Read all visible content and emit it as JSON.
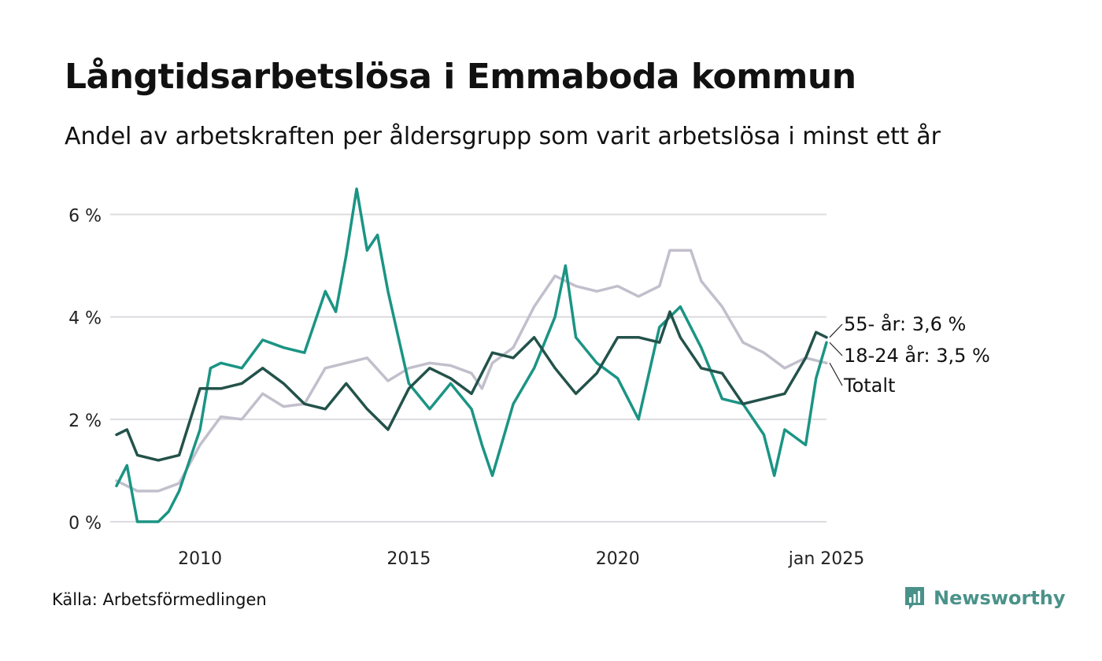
{
  "title": "Långtidsarbetslösa i Emmaboda kommun",
  "subtitle": "Andel av arbetskraften per åldersgrupp som varit arbetslösa i minst ett år",
  "source": "Källa: Arbetsförmedlingen",
  "brand": {
    "name": "Newsworthy",
    "icon": "bar-chart-speech-bubble-icon",
    "color": "#4a9289"
  },
  "chart_data": {
    "type": "line",
    "x_range": [
      "2008-01",
      "2025-01"
    ],
    "x_ticks": [
      {
        "x": "2010-01",
        "label": "2010"
      },
      {
        "x": "2015-01",
        "label": "2015"
      },
      {
        "x": "2020-01",
        "label": "2020"
      },
      {
        "x": "2025-01",
        "label": "jan 2025"
      }
    ],
    "ylim": [
      0,
      6.5
    ],
    "y_ticks": [
      {
        "value": 0,
        "label": "0 %"
      },
      {
        "value": 2,
        "label": "2 %"
      },
      {
        "value": 4,
        "label": "4 %"
      },
      {
        "value": 6,
        "label": "6 %"
      }
    ],
    "grid": true,
    "legend": "end-of-line labels",
    "series": [
      {
        "name": "Totalt",
        "label": "Totalt",
        "color": "#c2bfcc",
        "points": [
          [
            "2008-01",
            0.8
          ],
          [
            "2008-07",
            0.6
          ],
          [
            "2009-01",
            0.6
          ],
          [
            "2009-07",
            0.75
          ],
          [
            "2010-01",
            1.5
          ],
          [
            "2010-07",
            2.05
          ],
          [
            "2011-01",
            2.0
          ],
          [
            "2011-07",
            2.5
          ],
          [
            "2012-01",
            2.25
          ],
          [
            "2012-07",
            2.3
          ],
          [
            "2013-01",
            3.0
          ],
          [
            "2013-07",
            3.1
          ],
          [
            "2014-01",
            3.2
          ],
          [
            "2014-07",
            2.75
          ],
          [
            "2015-01",
            3.0
          ],
          [
            "2015-07",
            3.1
          ],
          [
            "2016-01",
            3.05
          ],
          [
            "2016-07",
            2.9
          ],
          [
            "2016-10",
            2.6
          ],
          [
            "2017-01",
            3.1
          ],
          [
            "2017-07",
            3.4
          ],
          [
            "2018-01",
            4.2
          ],
          [
            "2018-07",
            4.8
          ],
          [
            "2019-01",
            4.6
          ],
          [
            "2019-07",
            4.5
          ],
          [
            "2020-01",
            4.6
          ],
          [
            "2020-07",
            4.4
          ],
          [
            "2021-01",
            4.6
          ],
          [
            "2021-04",
            5.3
          ],
          [
            "2021-10",
            5.3
          ],
          [
            "2022-01",
            4.7
          ],
          [
            "2022-07",
            4.2
          ],
          [
            "2023-01",
            3.5
          ],
          [
            "2023-07",
            3.3
          ],
          [
            "2024-01",
            3.0
          ],
          [
            "2024-07",
            3.2
          ],
          [
            "2025-01",
            3.1
          ]
        ]
      },
      {
        "name": "18-24 år",
        "label": "18-24 år: 3,5 %",
        "color": "#1b9484",
        "points": [
          [
            "2008-01",
            0.7
          ],
          [
            "2008-04",
            1.1
          ],
          [
            "2008-07",
            0.0
          ],
          [
            "2009-01",
            0.0
          ],
          [
            "2009-04",
            0.2
          ],
          [
            "2009-07",
            0.6
          ],
          [
            "2010-01",
            1.8
          ],
          [
            "2010-04",
            3.0
          ],
          [
            "2010-07",
            3.1
          ],
          [
            "2011-01",
            3.0
          ],
          [
            "2011-07",
            3.55
          ],
          [
            "2012-01",
            3.4
          ],
          [
            "2012-07",
            3.3
          ],
          [
            "2013-01",
            4.5
          ],
          [
            "2013-04",
            4.1
          ],
          [
            "2013-07",
            5.2
          ],
          [
            "2013-10",
            6.5
          ],
          [
            "2014-01",
            5.3
          ],
          [
            "2014-04",
            5.6
          ],
          [
            "2014-07",
            4.5
          ],
          [
            "2014-10",
            3.6
          ],
          [
            "2015-01",
            2.7
          ],
          [
            "2015-07",
            2.2
          ],
          [
            "2016-01",
            2.7
          ],
          [
            "2016-07",
            2.2
          ],
          [
            "2016-10",
            1.5
          ],
          [
            "2017-01",
            0.9
          ],
          [
            "2017-07",
            2.3
          ],
          [
            "2018-01",
            3.0
          ],
          [
            "2018-07",
            4.0
          ],
          [
            "2018-10",
            5.0
          ],
          [
            "2019-01",
            3.6
          ],
          [
            "2019-07",
            3.1
          ],
          [
            "2020-01",
            2.8
          ],
          [
            "2020-07",
            2.0
          ],
          [
            "2021-01",
            3.8
          ],
          [
            "2021-07",
            4.2
          ],
          [
            "2022-01",
            3.4
          ],
          [
            "2022-07",
            2.4
          ],
          [
            "2023-01",
            2.3
          ],
          [
            "2023-07",
            1.7
          ],
          [
            "2023-10",
            0.9
          ],
          [
            "2024-01",
            1.8
          ],
          [
            "2024-07",
            1.5
          ],
          [
            "2024-10",
            2.8
          ],
          [
            "2025-01",
            3.5
          ]
        ]
      },
      {
        "name": "55- år",
        "label": "55- år: 3,6 %",
        "color": "#23524a",
        "points": [
          [
            "2008-01",
            1.7
          ],
          [
            "2008-04",
            1.8
          ],
          [
            "2008-07",
            1.3
          ],
          [
            "2009-01",
            1.2
          ],
          [
            "2009-07",
            1.3
          ],
          [
            "2010-01",
            2.6
          ],
          [
            "2010-07",
            2.6
          ],
          [
            "2011-01",
            2.7
          ],
          [
            "2011-07",
            3.0
          ],
          [
            "2012-01",
            2.7
          ],
          [
            "2012-07",
            2.3
          ],
          [
            "2013-01",
            2.2
          ],
          [
            "2013-07",
            2.7
          ],
          [
            "2014-01",
            2.2
          ],
          [
            "2014-07",
            1.8
          ],
          [
            "2015-01",
            2.6
          ],
          [
            "2015-07",
            3.0
          ],
          [
            "2016-01",
            2.8
          ],
          [
            "2016-07",
            2.5
          ],
          [
            "2017-01",
            3.3
          ],
          [
            "2017-07",
            3.2
          ],
          [
            "2018-01",
            3.6
          ],
          [
            "2018-07",
            3.0
          ],
          [
            "2019-01",
            2.5
          ],
          [
            "2019-07",
            2.9
          ],
          [
            "2020-01",
            3.6
          ],
          [
            "2020-07",
            3.6
          ],
          [
            "2021-01",
            3.5
          ],
          [
            "2021-04",
            4.1
          ],
          [
            "2021-07",
            3.6
          ],
          [
            "2022-01",
            3.0
          ],
          [
            "2022-07",
            2.9
          ],
          [
            "2023-01",
            2.3
          ],
          [
            "2023-07",
            2.4
          ],
          [
            "2024-01",
            2.5
          ],
          [
            "2024-07",
            3.2
          ],
          [
            "2024-10",
            3.7
          ],
          [
            "2025-01",
            3.6
          ]
        ]
      }
    ]
  }
}
